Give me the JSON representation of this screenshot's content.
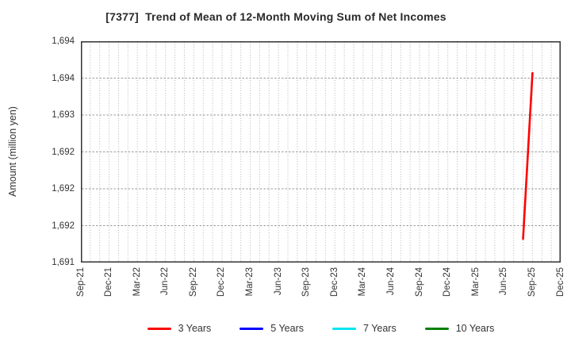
{
  "chart_data": {
    "type": "line",
    "title": "[7377]  Trend of Mean of 12-Month Moving Sum of Net Incomes",
    "ylabel": "Amount (million yen)",
    "xlabel": "",
    "ylim": [
      1691,
      1694
    ],
    "y_tick_step": 0.5,
    "y_ticks": [
      {
        "value": 1694.0,
        "label": "1,694"
      },
      {
        "value": 1693.5,
        "label": "1,694"
      },
      {
        "value": 1693.0,
        "label": "1,693"
      },
      {
        "value": 1692.5,
        "label": "1,692"
      },
      {
        "value": 1692.0,
        "label": "1,692"
      },
      {
        "value": 1691.5,
        "label": "1,692"
      },
      {
        "value": 1691.0,
        "label": "1,691"
      }
    ],
    "x_axis": {
      "start_month": "Sep-21",
      "end_month": "Dec-25",
      "months_total": 51,
      "tick_every_months": 3,
      "minor_grid": "monthly",
      "tick_labels": [
        "Sep-21",
        "Dec-21",
        "Mar-22",
        "Jun-22",
        "Sep-22",
        "Dec-22",
        "Mar-23",
        "Jun-23",
        "Sep-23",
        "Dec-23",
        "Mar-24",
        "Jun-24",
        "Sep-24",
        "Dec-24",
        "Mar-25",
        "Jun-25",
        "Sep-25",
        "Dec-25"
      ]
    },
    "series": [
      {
        "name": "3 Years",
        "color": "#ff0000",
        "points": [
          {
            "x": "Aug-25",
            "month_index": 47,
            "y": 1691.32
          },
          {
            "x": "Sep-25",
            "month_index": 48,
            "y": 1693.57
          }
        ]
      },
      {
        "name": "5 Years",
        "color": "#0000ff",
        "points": []
      },
      {
        "name": "7 Years",
        "color": "#00e5ee",
        "points": []
      },
      {
        "name": "10 Years",
        "color": "#008000",
        "points": []
      }
    ],
    "legend_position": "bottom",
    "grid": true
  },
  "colors": {
    "background": "#ffffff",
    "plot_border": "#333333",
    "grid_vertical": "#b5b5b5",
    "grid_horizontal": "#9a9a9a",
    "tick_text": "#333333",
    "title_text": "#2a2a2a"
  }
}
